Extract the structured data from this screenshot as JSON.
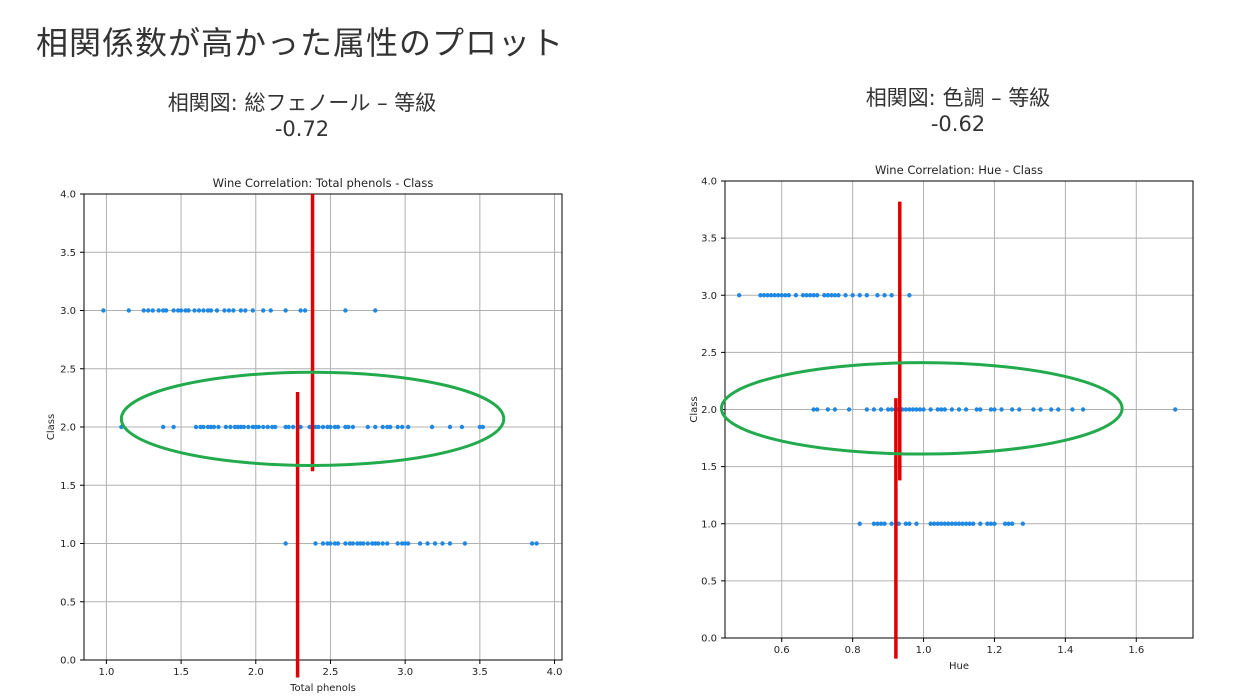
{
  "slide": {
    "title": "相関係数が高かった属性のプロット"
  },
  "panels": [
    {
      "heading": "相関図: 総フェノール – 等級",
      "coef": "-0.72"
    },
    {
      "heading": "相関図: 色調 – 等級",
      "coef": "-0.62"
    }
  ],
  "colors": {
    "points": "#1e88e5",
    "grid": "#b0b0b0",
    "annotation_line": "#e00000",
    "annotation_ellipse": "#22aa4c"
  },
  "chart_data": [
    {
      "type": "scatter",
      "title": "Wine Correlation: Total phenols - Class",
      "xlabel": "Total phenols",
      "ylabel": "Class",
      "xlim": [
        0.85,
        4.05
      ],
      "ylim": [
        0.0,
        4.0
      ],
      "xticks": [
        "1.0",
        "1.5",
        "2.0",
        "2.5",
        "3.0",
        "3.5",
        "4.0"
      ],
      "yticks": [
        "0.0",
        "0.5",
        "1.0",
        "1.5",
        "2.0",
        "2.5",
        "3.0",
        "3.5",
        "4.0"
      ],
      "grid": true,
      "series": [
        {
          "values": [
            [
              0.98,
              3
            ],
            [
              1.15,
              3
            ],
            [
              1.25,
              3
            ],
            [
              1.28,
              3
            ],
            [
              1.31,
              3
            ],
            [
              1.35,
              3
            ],
            [
              1.38,
              3
            ],
            [
              1.4,
              3
            ],
            [
              1.45,
              3
            ],
            [
              1.48,
              3
            ],
            [
              1.5,
              3
            ],
            [
              1.53,
              3
            ],
            [
              1.55,
              3
            ],
            [
              1.59,
              3
            ],
            [
              1.62,
              3
            ],
            [
              1.65,
              3
            ],
            [
              1.68,
              3
            ],
            [
              1.7,
              3
            ],
            [
              1.74,
              3
            ],
            [
              1.79,
              3
            ],
            [
              1.82,
              3
            ],
            [
              1.85,
              3
            ],
            [
              1.9,
              3
            ],
            [
              1.93,
              3
            ],
            [
              1.98,
              3
            ],
            [
              2.05,
              3
            ],
            [
              2.1,
              3
            ],
            [
              2.2,
              3
            ],
            [
              2.3,
              3
            ],
            [
              2.33,
              3
            ],
            [
              2.6,
              3
            ],
            [
              2.8,
              3
            ],
            [
              1.1,
              2
            ],
            [
              1.38,
              2
            ],
            [
              1.45,
              2
            ],
            [
              1.6,
              2
            ],
            [
              1.63,
              2
            ],
            [
              1.65,
              2
            ],
            [
              1.68,
              2
            ],
            [
              1.7,
              2
            ],
            [
              1.72,
              2
            ],
            [
              1.75,
              2
            ],
            [
              1.8,
              2
            ],
            [
              1.83,
              2
            ],
            [
              1.86,
              2
            ],
            [
              1.88,
              2
            ],
            [
              1.9,
              2
            ],
            [
              1.92,
              2
            ],
            [
              1.95,
              2
            ],
            [
              1.98,
              2
            ],
            [
              2.0,
              2
            ],
            [
              2.02,
              2
            ],
            [
              2.05,
              2
            ],
            [
              2.08,
              2
            ],
            [
              2.11,
              2
            ],
            [
              2.13,
              2
            ],
            [
              2.2,
              2
            ],
            [
              2.22,
              2
            ],
            [
              2.25,
              2
            ],
            [
              2.3,
              2
            ],
            [
              2.36,
              2
            ],
            [
              2.4,
              2
            ],
            [
              2.42,
              2
            ],
            [
              2.45,
              2
            ],
            [
              2.48,
              2
            ],
            [
              2.5,
              2
            ],
            [
              2.53,
              2
            ],
            [
              2.55,
              2
            ],
            [
              2.6,
              2
            ],
            [
              2.62,
              2
            ],
            [
              2.65,
              2
            ],
            [
              2.75,
              2
            ],
            [
              2.8,
              2
            ],
            [
              2.85,
              2
            ],
            [
              2.88,
              2
            ],
            [
              2.9,
              2
            ],
            [
              2.95,
              2
            ],
            [
              2.98,
              2
            ],
            [
              3.02,
              2
            ],
            [
              3.18,
              2
            ],
            [
              3.3,
              2
            ],
            [
              3.38,
              2
            ],
            [
              3.5,
              2
            ],
            [
              3.52,
              2
            ],
            [
              2.2,
              1
            ],
            [
              2.4,
              1
            ],
            [
              2.45,
              1
            ],
            [
              2.48,
              1
            ],
            [
              2.5,
              1
            ],
            [
              2.53,
              1
            ],
            [
              2.55,
              1
            ],
            [
              2.6,
              1
            ],
            [
              2.63,
              1
            ],
            [
              2.65,
              1
            ],
            [
              2.68,
              1
            ],
            [
              2.7,
              1
            ],
            [
              2.72,
              1
            ],
            [
              2.75,
              1
            ],
            [
              2.78,
              1
            ],
            [
              2.8,
              1
            ],
            [
              2.82,
              1
            ],
            [
              2.85,
              1
            ],
            [
              2.88,
              1
            ],
            [
              2.95,
              1
            ],
            [
              2.98,
              1
            ],
            [
              3.0,
              1
            ],
            [
              3.02,
              1
            ],
            [
              3.1,
              1
            ],
            [
              3.15,
              1
            ],
            [
              3.2,
              1
            ],
            [
              3.25,
              1
            ],
            [
              3.3,
              1
            ],
            [
              3.4,
              1
            ],
            [
              3.85,
              1
            ],
            [
              3.88,
              1
            ]
          ]
        }
      ],
      "annotations": [
        {
          "type": "vline",
          "x": 2.38,
          "y_from": 1.62,
          "y_to": 4.0
        },
        {
          "type": "vline",
          "x": 2.28,
          "y_from": -0.15,
          "y_to": 2.3
        },
        {
          "type": "ellipse",
          "cx": 2.38,
          "cy": 2.07,
          "rx": 1.28,
          "ry": 0.4
        }
      ]
    },
    {
      "type": "scatter",
      "title": "Wine Correlation: Hue - Class",
      "xlabel": "Hue",
      "ylabel": "Class",
      "xlim": [
        0.44,
        1.76
      ],
      "ylim": [
        0.0,
        4.0
      ],
      "xticks": [
        "0.6",
        "0.8",
        "1.0",
        "1.2",
        "1.4",
        "1.6"
      ],
      "yticks": [
        "0.0",
        "0.5",
        "1.0",
        "1.5",
        "2.0",
        "2.5",
        "3.0",
        "3.5",
        "4.0"
      ],
      "grid": true,
      "series": [
        {
          "values": [
            [
              0.48,
              3
            ],
            [
              0.54,
              3
            ],
            [
              0.55,
              3
            ],
            [
              0.56,
              3
            ],
            [
              0.57,
              3
            ],
            [
              0.58,
              3
            ],
            [
              0.59,
              3
            ],
            [
              0.6,
              3
            ],
            [
              0.61,
              3
            ],
            [
              0.62,
              3
            ],
            [
              0.64,
              3
            ],
            [
              0.66,
              3
            ],
            [
              0.67,
              3
            ],
            [
              0.68,
              3
            ],
            [
              0.69,
              3
            ],
            [
              0.7,
              3
            ],
            [
              0.72,
              3
            ],
            [
              0.73,
              3
            ],
            [
              0.74,
              3
            ],
            [
              0.75,
              3
            ],
            [
              0.76,
              3
            ],
            [
              0.78,
              3
            ],
            [
              0.8,
              3
            ],
            [
              0.82,
              3
            ],
            [
              0.84,
              3
            ],
            [
              0.87,
              3
            ],
            [
              0.89,
              3
            ],
            [
              0.91,
              3
            ],
            [
              0.96,
              3
            ],
            [
              0.69,
              2
            ],
            [
              0.7,
              2
            ],
            [
              0.73,
              2
            ],
            [
              0.75,
              2
            ],
            [
              0.79,
              2
            ],
            [
              0.84,
              2
            ],
            [
              0.86,
              2
            ],
            [
              0.88,
              2
            ],
            [
              0.9,
              2
            ],
            [
              0.91,
              2
            ],
            [
              0.92,
              2
            ],
            [
              0.93,
              2
            ],
            [
              0.94,
              2
            ],
            [
              0.95,
              2
            ],
            [
              0.96,
              2
            ],
            [
              0.97,
              2
            ],
            [
              0.98,
              2
            ],
            [
              0.99,
              2
            ],
            [
              1.0,
              2
            ],
            [
              1.02,
              2
            ],
            [
              1.04,
              2
            ],
            [
              1.05,
              2
            ],
            [
              1.06,
              2
            ],
            [
              1.08,
              2
            ],
            [
              1.1,
              2
            ],
            [
              1.12,
              2
            ],
            [
              1.15,
              2
            ],
            [
              1.16,
              2
            ],
            [
              1.19,
              2
            ],
            [
              1.2,
              2
            ],
            [
              1.22,
              2
            ],
            [
              1.25,
              2
            ],
            [
              1.27,
              2
            ],
            [
              1.31,
              2
            ],
            [
              1.33,
              2
            ],
            [
              1.36,
              2
            ],
            [
              1.38,
              2
            ],
            [
              1.42,
              2
            ],
            [
              1.45,
              2
            ],
            [
              1.71,
              2
            ],
            [
              0.82,
              1
            ],
            [
              0.86,
              1
            ],
            [
              0.87,
              1
            ],
            [
              0.88,
              1
            ],
            [
              0.89,
              1
            ],
            [
              0.91,
              1
            ],
            [
              0.93,
              1
            ],
            [
              0.95,
              1
            ],
            [
              0.96,
              1
            ],
            [
              0.98,
              1
            ],
            [
              1.02,
              1
            ],
            [
              1.03,
              1
            ],
            [
              1.04,
              1
            ],
            [
              1.05,
              1
            ],
            [
              1.06,
              1
            ],
            [
              1.07,
              1
            ],
            [
              1.08,
              1
            ],
            [
              1.09,
              1
            ],
            [
              1.1,
              1
            ],
            [
              1.11,
              1
            ],
            [
              1.12,
              1
            ],
            [
              1.13,
              1
            ],
            [
              1.14,
              1
            ],
            [
              1.16,
              1
            ],
            [
              1.18,
              1
            ],
            [
              1.19,
              1
            ],
            [
              1.2,
              1
            ],
            [
              1.23,
              1
            ],
            [
              1.24,
              1
            ],
            [
              1.25,
              1
            ],
            [
              1.28,
              1
            ]
          ]
        }
      ],
      "annotations": [
        {
          "type": "vline",
          "x": 0.933,
          "y_from": 1.38,
          "y_to": 3.82
        },
        {
          "type": "vline",
          "x": 0.922,
          "y_from": -0.18,
          "y_to": 2.1
        },
        {
          "type": "ellipse",
          "cx": 0.995,
          "cy": 2.01,
          "rx": 0.565,
          "ry": 0.4
        }
      ]
    }
  ]
}
